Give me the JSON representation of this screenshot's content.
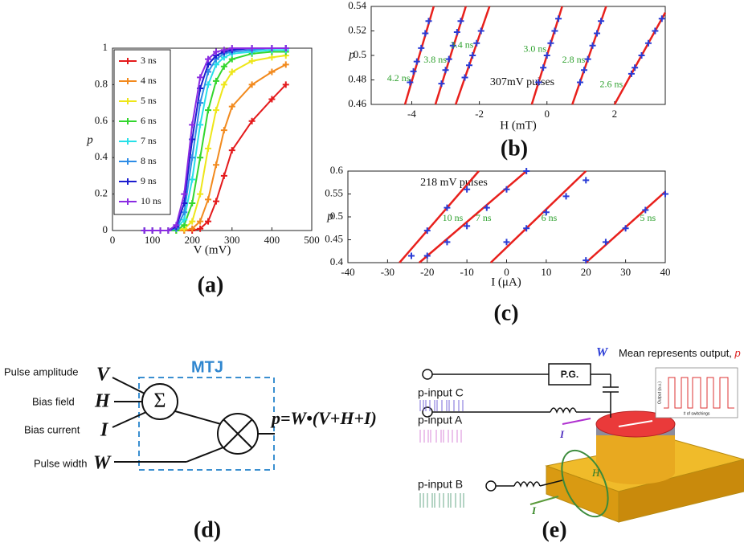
{
  "chart_data": [
    {
      "type": "line",
      "label": "(a)",
      "xlabel": "V (mV)",
      "ylabel": "p",
      "xlim": [
        0,
        500
      ],
      "xticks": [
        0,
        100,
        200,
        300,
        400,
        500
      ],
      "ylim": [
        0,
        1
      ],
      "yticks": [
        0,
        0.2,
        0.4,
        0.6,
        0.8,
        1
      ],
      "legend": "upper left",
      "x": [
        80,
        100,
        120,
        140,
        160,
        180,
        200,
        220,
        240,
        260,
        280,
        300,
        350,
        400,
        435
      ],
      "series": [
        {
          "name": "3 ns",
          "color": "#e41a1c",
          "values": [
            0,
            0,
            0,
            0,
            0,
            0,
            0,
            0.01,
            0.05,
            0.16,
            0.3,
            0.44,
            0.6,
            0.72,
            0.8
          ]
        },
        {
          "name": "4 ns",
          "color": "#f28a1e",
          "values": [
            0,
            0,
            0,
            0,
            0,
            0,
            0.01,
            0.05,
            0.17,
            0.36,
            0.55,
            0.68,
            0.8,
            0.87,
            0.91
          ]
        },
        {
          "name": "5 ns",
          "color": "#eee619",
          "values": [
            0,
            0,
            0,
            0,
            0,
            0.01,
            0.05,
            0.2,
            0.45,
            0.66,
            0.8,
            0.87,
            0.93,
            0.95,
            0.96
          ]
        },
        {
          "name": "6 ns",
          "color": "#33d62e",
          "values": [
            0,
            0,
            0,
            0,
            0,
            0.03,
            0.15,
            0.4,
            0.66,
            0.82,
            0.9,
            0.94,
            0.97,
            0.98,
            0.98
          ]
        },
        {
          "name": "7 ns",
          "color": "#27e0e8",
          "values": [
            0,
            0,
            0,
            0,
            0.01,
            0.06,
            0.28,
            0.58,
            0.8,
            0.91,
            0.95,
            0.97,
            0.98,
            0.99,
            0.99
          ]
        },
        {
          "name": "8 ns",
          "color": "#2d8ce6",
          "values": [
            0,
            0,
            0,
            0,
            0.01,
            0.1,
            0.4,
            0.7,
            0.87,
            0.94,
            0.97,
            0.98,
            0.99,
            1,
            1
          ]
        },
        {
          "name": "9 ns",
          "color": "#1c1ccf",
          "values": [
            0,
            0,
            0,
            0,
            0.02,
            0.15,
            0.5,
            0.78,
            0.91,
            0.96,
            0.98,
            0.99,
            1,
            1,
            1
          ]
        },
        {
          "name": "10 ns",
          "color": "#8a2be2",
          "values": [
            0,
            0,
            0,
            0,
            0.03,
            0.2,
            0.58,
            0.84,
            0.94,
            0.98,
            0.99,
            1,
            1,
            1,
            1
          ]
        }
      ]
    },
    {
      "type": "scatter",
      "label": "(b)",
      "xlabel": "H (mT)",
      "ylabel": "p",
      "annotation": "307mV pulses",
      "xlim": [
        -5.2,
        3.5
      ],
      "xticks": [
        -4,
        -2,
        0,
        2
      ],
      "ylim": [
        0.46,
        0.54
      ],
      "yticks": [
        0.46,
        0.48,
        0.5,
        0.52,
        0.54
      ],
      "fit_color": "#e8201c",
      "marker_color": "#2a3cd6",
      "label_color": "#2ea12e",
      "series": [
        {
          "name": "4.2 ns",
          "fit_x": [
            -4.2,
            -3.35
          ],
          "fit_y": [
            0.46,
            0.54
          ],
          "x": [
            -4.05,
            -3.95,
            -3.85,
            -3.72,
            -3.6,
            -3.5
          ],
          "values": [
            0.478,
            0.487,
            0.495,
            0.506,
            0.518,
            0.528
          ]
        },
        {
          "name": "3.8 ns",
          "fit_x": [
            -3.3,
            -2.4
          ],
          "fit_y": [
            0.46,
            0.54
          ],
          "x": [
            -3.12,
            -3.0,
            -2.9,
            -2.78,
            -2.66,
            -2.55
          ],
          "values": [
            0.477,
            0.488,
            0.497,
            0.508,
            0.519,
            0.528
          ]
        },
        {
          "name": "3.4 ns",
          "fit_x": [
            -2.7,
            -1.7
          ],
          "fit_y": [
            0.46,
            0.54
          ],
          "x": [
            -2.43,
            -2.3,
            -2.2,
            -2.08,
            -1.95
          ],
          "values": [
            0.482,
            0.492,
            0.5,
            0.51,
            0.52
          ]
        },
        {
          "name": "3.0 ns",
          "fit_x": [
            -0.45,
            0.45
          ],
          "fit_y": [
            0.46,
            0.54
          ],
          "x": [
            -0.25,
            -0.11,
            0.0,
            0.11,
            0.23,
            0.34
          ],
          "values": [
            0.478,
            0.49,
            0.5,
            0.51,
            0.52,
            0.53
          ]
        },
        {
          "name": "2.8 ns",
          "fit_x": [
            0.75,
            1.75
          ],
          "fit_y": [
            0.46,
            0.54
          ],
          "x": [
            0.98,
            1.1,
            1.21,
            1.35,
            1.48,
            1.6
          ],
          "values": [
            0.478,
            0.488,
            0.497,
            0.508,
            0.518,
            0.528
          ]
        },
        {
          "name": "2.6 ns",
          "fit_x": [
            2.0,
            3.5
          ],
          "fit_y": [
            0.46,
            0.535
          ],
          "x": [
            2.5,
            2.6,
            2.8,
            3.0,
            3.2,
            3.4
          ],
          "values": [
            0.485,
            0.49,
            0.5,
            0.51,
            0.52,
            0.53
          ]
        }
      ]
    },
    {
      "type": "scatter",
      "label": "(c)",
      "xlabel": "I (μA)",
      "ylabel": "p",
      "annotation": "218 mV pulses",
      "xlim": [
        -40,
        40
      ],
      "xticks": [
        -40,
        -30,
        -20,
        -10,
        0,
        10,
        20,
        30,
        40
      ],
      "ylim": [
        0.4,
        0.6
      ],
      "yticks": [
        0.4,
        0.45,
        0.5,
        0.55,
        0.6
      ],
      "fit_color": "#e8201c",
      "marker_color": "#2a3cd6",
      "label_color": "#2ea12e",
      "series": [
        {
          "name": "10 ns",
          "fit_x": [
            -27,
            -7
          ],
          "fit_y": [
            0.4,
            0.6
          ],
          "x": [
            -24,
            -20,
            -15,
            -10
          ],
          "values": [
            0.415,
            0.47,
            0.52,
            0.56
          ]
        },
        {
          "name": "7 ns",
          "fit_x": [
            -22,
            5
          ],
          "fit_y": [
            0.4,
            0.6
          ],
          "x": [
            -20,
            -15,
            -10,
            -5,
            0,
            5
          ],
          "values": [
            0.415,
            0.445,
            0.48,
            0.52,
            0.56,
            0.6
          ]
        },
        {
          "name": "6 ns",
          "fit_x": [
            -4,
            20
          ],
          "fit_y": [
            0.4,
            0.6
          ],
          "x": [
            0,
            5,
            10,
            15,
            20
          ],
          "values": [
            0.445,
            0.475,
            0.51,
            0.545,
            0.58
          ]
        },
        {
          "name": "5 ns",
          "fit_x": [
            20,
            40
          ],
          "fit_y": [
            0.4,
            0.555
          ],
          "x": [
            20,
            25,
            30,
            35,
            40
          ],
          "values": [
            0.405,
            0.445,
            0.475,
            0.515,
            0.55
          ]
        }
      ]
    }
  ],
  "diagram_d": {
    "label": "(d)",
    "box_label": "MTJ",
    "sum_symbol": "Σ",
    "output": "p=W•(V+H+I)",
    "inputs": [
      {
        "name": "Pulse amplitude",
        "symbol": "V"
      },
      {
        "name": "Bias field",
        "symbol": "H"
      },
      {
        "name": "Bias current",
        "symbol": "I"
      },
      {
        "name": "Pulse width",
        "symbol": "W"
      }
    ]
  },
  "diagram_e": {
    "label": "(e)",
    "generator": "P.G.",
    "weight": "W",
    "caption": "Mean represents output, ",
    "caption_symbol": "p",
    "inputs": [
      "p-input C",
      "p-input A",
      "p-input B"
    ],
    "current_a": "I",
    "field": "H",
    "current_b": "I",
    "inset_xlabel": "# of switchings",
    "inset_ylabel": "Output (a.u.)"
  }
}
